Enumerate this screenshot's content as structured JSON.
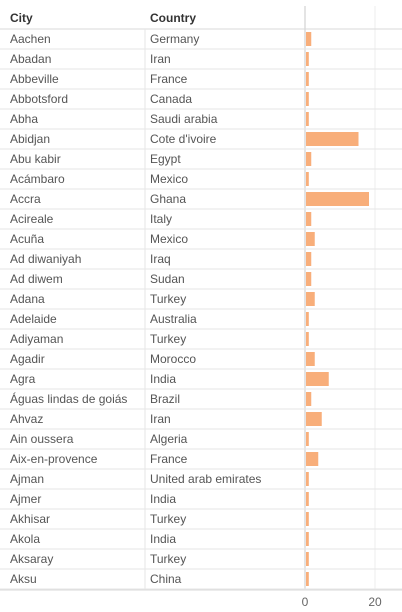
{
  "chart_data": {
    "type": "bar",
    "orientation": "horizontal",
    "columns": [
      "City",
      "Country"
    ],
    "rows": [
      {
        "city": "Aachen",
        "country": "Germany",
        "value": 1.5
      },
      {
        "city": "Abadan",
        "country": "Iran",
        "value": 0.8
      },
      {
        "city": "Abbeville",
        "country": "France",
        "value": 0.8
      },
      {
        "city": "Abbotsford",
        "country": "Canada",
        "value": 0.8
      },
      {
        "city": "Abha",
        "country": "Saudi arabia",
        "value": 0.8
      },
      {
        "city": "Abidjan",
        "country": "Cote d'ivoire",
        "value": 15
      },
      {
        "city": "Abu kabir",
        "country": "Egypt",
        "value": 1.5
      },
      {
        "city": "Acámbaro",
        "country": "Mexico",
        "value": 0.8
      },
      {
        "city": "Accra",
        "country": "Ghana",
        "value": 18
      },
      {
        "city": "Acireale",
        "country": "Italy",
        "value": 1.5
      },
      {
        "city": "Acuña",
        "country": "Mexico",
        "value": 2.5
      },
      {
        "city": "Ad diwaniyah",
        "country": "Iraq",
        "value": 1.5
      },
      {
        "city": "Ad diwem",
        "country": "Sudan",
        "value": 1.5
      },
      {
        "city": "Adana",
        "country": "Turkey",
        "value": 2.5
      },
      {
        "city": "Adelaide",
        "country": "Australia",
        "value": 0.8
      },
      {
        "city": "Adiyaman",
        "country": "Turkey",
        "value": 0.8
      },
      {
        "city": "Agadir",
        "country": "Morocco",
        "value": 2.5
      },
      {
        "city": "Agra",
        "country": "India",
        "value": 6.5
      },
      {
        "city": "Águas lindas de goiás",
        "country": "Brazil",
        "value": 1.5
      },
      {
        "city": "Ahvaz",
        "country": "Iran",
        "value": 4.5
      },
      {
        "city": "Ain oussera",
        "country": "Algeria",
        "value": 0.8
      },
      {
        "city": "Aix-en-provence",
        "country": "France",
        "value": 3.5
      },
      {
        "city": "Ajman",
        "country": "United arab emirates",
        "value": 0.8
      },
      {
        "city": "Ajmer",
        "country": "India",
        "value": 0.8
      },
      {
        "city": "Akhisar",
        "country": "Turkey",
        "value": 0.8
      },
      {
        "city": "Akola",
        "country": "India",
        "value": 0.8
      },
      {
        "city": "Aksaray",
        "country": "Turkey",
        "value": 0.8
      },
      {
        "city": "Aksu",
        "country": "China",
        "value": 0.8
      }
    ],
    "x_ticks": [
      0,
      20
    ],
    "xlim": [
      0,
      25
    ],
    "bar_color": "#f8ae7a",
    "grid": "vertical lines at ticks"
  }
}
